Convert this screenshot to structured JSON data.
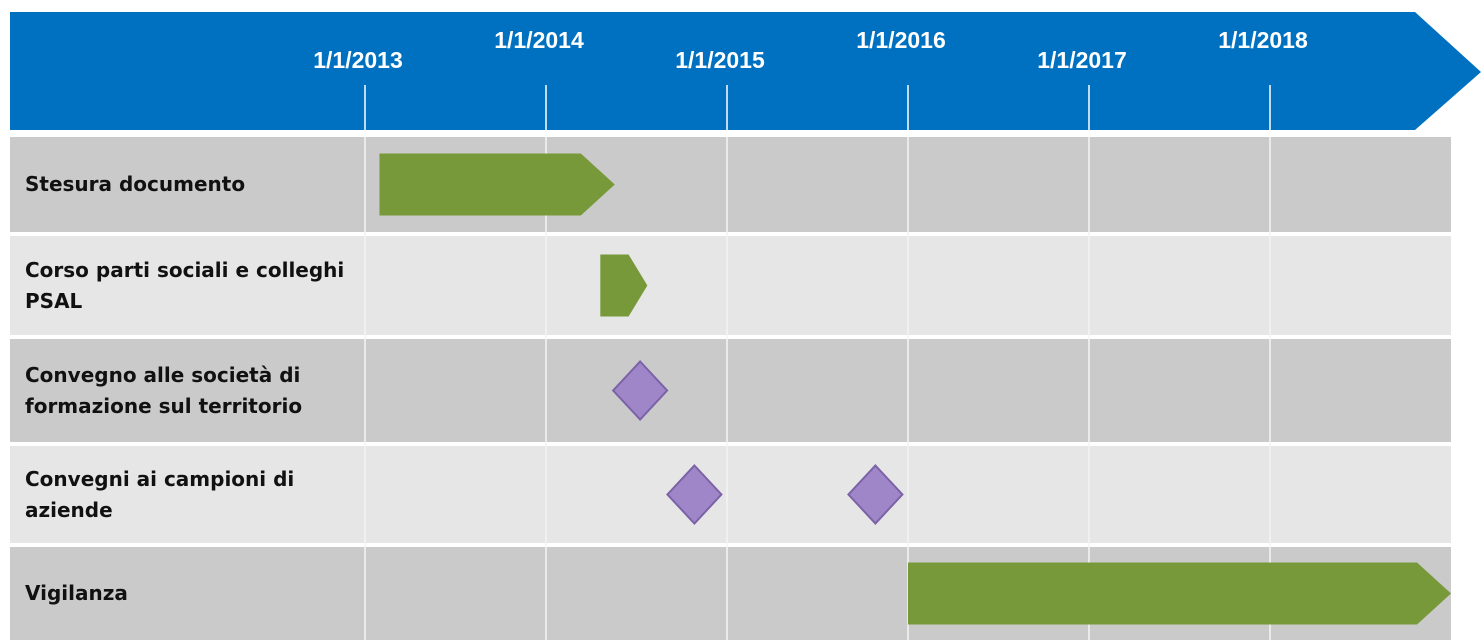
{
  "chart_data": {
    "type": "gantt",
    "xlim": [
      2013,
      2019
    ],
    "xticks": [
      {
        "value": 2013,
        "label": "1/1/2013"
      },
      {
        "value": 2014,
        "label": "1/1/2014"
      },
      {
        "value": 2015,
        "label": "1/1/2015"
      },
      {
        "value": 2016,
        "label": "1/1/2016"
      },
      {
        "value": 2017,
        "label": "1/1/2017"
      },
      {
        "value": 2018,
        "label": "1/1/2018"
      }
    ],
    "header_color": "#0070c0",
    "bar_color": "#77993a",
    "milestone_color": "#9e86c8",
    "tasks": [
      {
        "name": "Stesura documento",
        "start": 2013.08,
        "end": 2014.38
      },
      {
        "name": "Corso parti sociali e colleghi PSAL",
        "start": 2014.3,
        "end": 2014.56
      },
      {
        "name": "Convegno alle società di formazione sul territorio",
        "milestones": [
          2014.52
        ]
      },
      {
        "name": "Convegni ai campioni di aziende",
        "milestones": [
          2014.82,
          2015.82
        ]
      },
      {
        "name": "Vigilanza",
        "start": 2016.0,
        "end": 2019
      }
    ]
  }
}
